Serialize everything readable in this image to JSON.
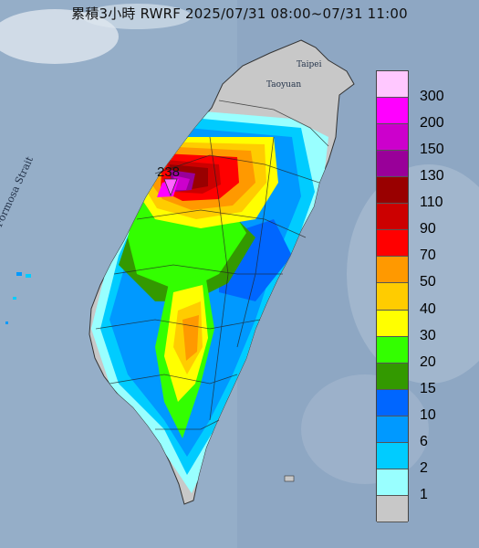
{
  "title": "累積3小時 RWRF 2025/07/31 08:00~07/31 11:00",
  "place_labels": {
    "strait": "Formosa Strait",
    "taipei": "Taipei",
    "taoyuan": "Taoyuan",
    "peak": "238"
  },
  "legend": {
    "levels": [
      {
        "label": "300",
        "color": "#ffc8ff"
      },
      {
        "label": "200",
        "color": "#ff00ff"
      },
      {
        "label": "150",
        "color": "#cc00cc"
      },
      {
        "label": "130",
        "color": "#990099"
      },
      {
        "label": "110",
        "color": "#990000"
      },
      {
        "label": "90",
        "color": "#cc0000"
      },
      {
        "label": "70",
        "color": "#ff0000"
      },
      {
        "label": "50",
        "color": "#ff9900"
      },
      {
        "label": "40",
        "color": "#ffcc00"
      },
      {
        "label": "30",
        "color": "#ffff00"
      },
      {
        "label": "20",
        "color": "#33ff00"
      },
      {
        "label": "15",
        "color": "#339900"
      },
      {
        "label": "10",
        "color": "#0066ff"
      },
      {
        "label": "6",
        "color": "#0099ff"
      },
      {
        "label": "2",
        "color": "#00ccff"
      },
      {
        "label": "1",
        "color": "#99ffff"
      },
      {
        "label": "",
        "color": "#c8c8c8"
      }
    ]
  }
}
